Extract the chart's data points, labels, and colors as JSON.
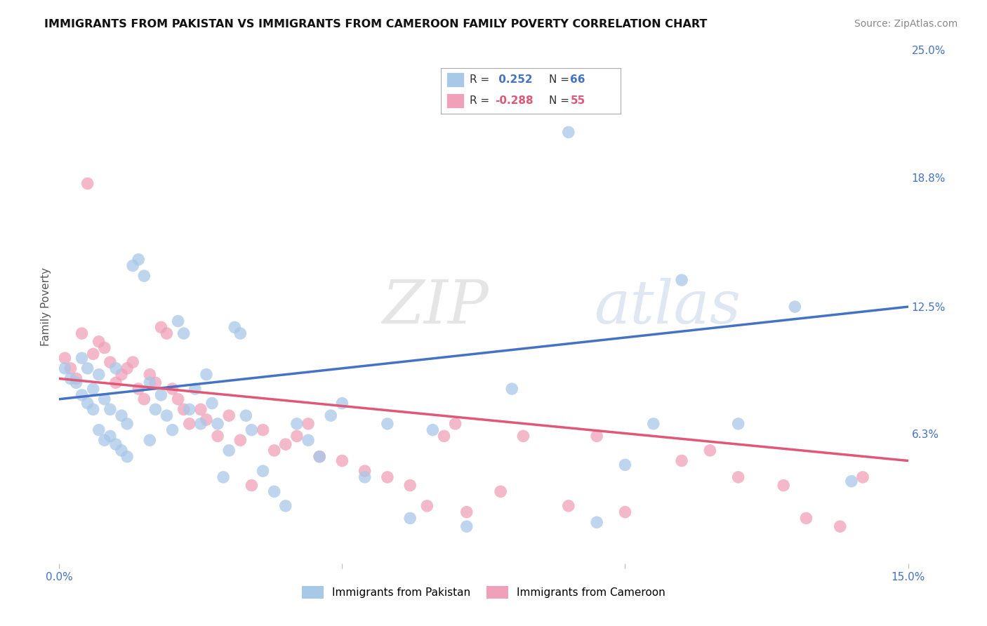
{
  "title": "IMMIGRANTS FROM PAKISTAN VS IMMIGRANTS FROM CAMEROON FAMILY POVERTY CORRELATION CHART",
  "source": "Source: ZipAtlas.com",
  "ylabel": "Family Poverty",
  "x_min": 0.0,
  "x_max": 0.15,
  "y_min": 0.0,
  "y_max": 0.25,
  "y_ticks_right": [
    0.25,
    0.188,
    0.125,
    0.063,
    0.0
  ],
  "y_tick_labels_right": [
    "25.0%",
    "18.8%",
    "12.5%",
    "6.3%",
    ""
  ],
  "pakistan_R": "0.252",
  "pakistan_N": "66",
  "cameroon_R": "-0.288",
  "cameroon_N": "55",
  "pakistan_color": "#a8c8e8",
  "cameroon_color": "#f0a0b8",
  "pakistan_line_color": "#4472c4",
  "cameroon_line_color": "#e05878",
  "background_color": "#ffffff",
  "grid_color": "#d0d0d0",
  "pk_line_start_y": 0.08,
  "pk_line_end_y": 0.125,
  "cm_line_start_y": 0.09,
  "cm_line_end_y": 0.05,
  "pakistan_x": [
    0.001,
    0.002,
    0.003,
    0.004,
    0.004,
    0.005,
    0.005,
    0.006,
    0.006,
    0.007,
    0.007,
    0.008,
    0.008,
    0.009,
    0.009,
    0.01,
    0.01,
    0.011,
    0.011,
    0.012,
    0.012,
    0.013,
    0.014,
    0.015,
    0.016,
    0.016,
    0.017,
    0.018,
    0.019,
    0.02,
    0.021,
    0.022,
    0.023,
    0.024,
    0.025,
    0.026,
    0.027,
    0.028,
    0.029,
    0.03,
    0.031,
    0.032,
    0.033,
    0.034,
    0.036,
    0.038,
    0.04,
    0.042,
    0.044,
    0.046,
    0.048,
    0.05,
    0.054,
    0.058,
    0.062,
    0.066,
    0.072,
    0.08,
    0.09,
    0.095,
    0.1,
    0.105,
    0.11,
    0.12,
    0.13,
    0.14
  ],
  "pakistan_y": [
    0.095,
    0.09,
    0.088,
    0.1,
    0.082,
    0.095,
    0.078,
    0.085,
    0.075,
    0.092,
    0.065,
    0.08,
    0.06,
    0.075,
    0.062,
    0.095,
    0.058,
    0.072,
    0.055,
    0.068,
    0.052,
    0.145,
    0.148,
    0.14,
    0.06,
    0.088,
    0.075,
    0.082,
    0.072,
    0.065,
    0.118,
    0.112,
    0.075,
    0.085,
    0.068,
    0.092,
    0.078,
    0.068,
    0.042,
    0.055,
    0.115,
    0.112,
    0.072,
    0.065,
    0.045,
    0.035,
    0.028,
    0.068,
    0.06,
    0.052,
    0.072,
    0.078,
    0.042,
    0.068,
    0.022,
    0.065,
    0.018,
    0.085,
    0.21,
    0.02,
    0.048,
    0.068,
    0.138,
    0.068,
    0.125,
    0.04
  ],
  "cameroon_x": [
    0.001,
    0.002,
    0.003,
    0.004,
    0.005,
    0.006,
    0.007,
    0.008,
    0.009,
    0.01,
    0.011,
    0.012,
    0.013,
    0.014,
    0.015,
    0.016,
    0.017,
    0.018,
    0.019,
    0.02,
    0.021,
    0.022,
    0.023,
    0.025,
    0.026,
    0.028,
    0.03,
    0.032,
    0.034,
    0.036,
    0.038,
    0.04,
    0.042,
    0.044,
    0.046,
    0.05,
    0.054,
    0.058,
    0.062,
    0.065,
    0.068,
    0.07,
    0.072,
    0.078,
    0.082,
    0.09,
    0.095,
    0.1,
    0.11,
    0.115,
    0.12,
    0.128,
    0.132,
    0.138,
    0.142
  ],
  "cameroon_y": [
    0.1,
    0.095,
    0.09,
    0.112,
    0.185,
    0.102,
    0.108,
    0.105,
    0.098,
    0.088,
    0.092,
    0.095,
    0.098,
    0.085,
    0.08,
    0.092,
    0.088,
    0.115,
    0.112,
    0.085,
    0.08,
    0.075,
    0.068,
    0.075,
    0.07,
    0.062,
    0.072,
    0.06,
    0.038,
    0.065,
    0.055,
    0.058,
    0.062,
    0.068,
    0.052,
    0.05,
    0.045,
    0.042,
    0.038,
    0.028,
    0.062,
    0.068,
    0.025,
    0.035,
    0.062,
    0.028,
    0.062,
    0.025,
    0.05,
    0.055,
    0.042,
    0.038,
    0.022,
    0.018,
    0.042
  ]
}
